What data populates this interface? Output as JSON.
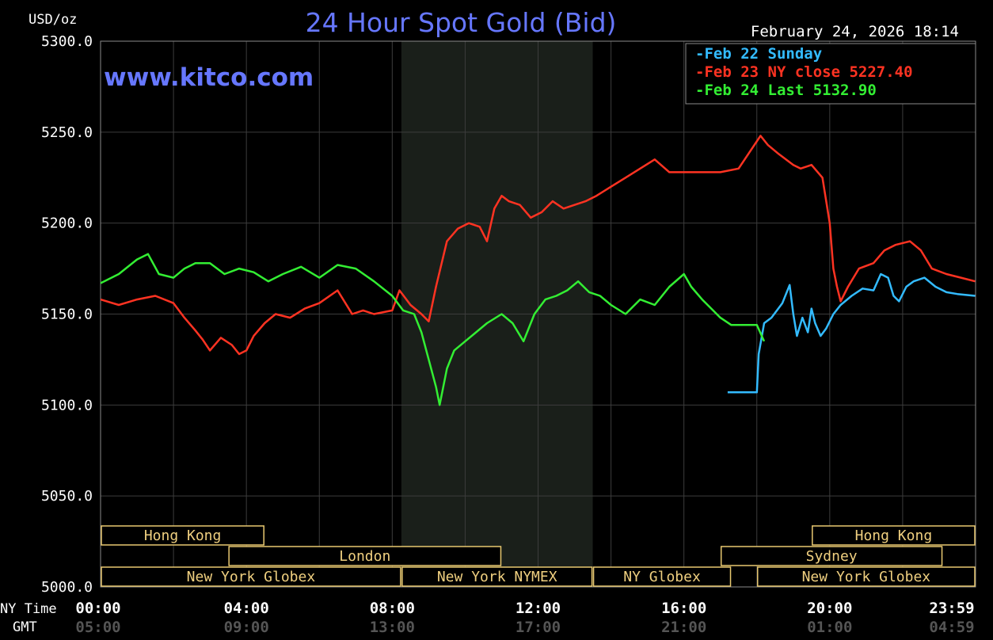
{
  "chart_data": {
    "type": "line",
    "title": "24 Hour Spot Gold (Bid)",
    "ylabel": "USD/oz",
    "watermark": "www.kitco.com",
    "timestamp": "February 24, 2026 18:14",
    "ylim": [
      5000,
      5300
    ],
    "y_ticks": [
      "5300.0",
      "5250.0",
      "5200.0",
      "5150.0",
      "5100.0",
      "5050.0",
      "5000.0"
    ],
    "x_row_labels": {
      "ny": "NY Time",
      "gmt": "GMT"
    },
    "x_ticks_ny": [
      "00:00",
      "04:00",
      "08:00",
      "12:00",
      "16:00",
      "20:00",
      "23:59"
    ],
    "x_ticks_gmt": [
      "05:00",
      "09:00",
      "13:00",
      "17:00",
      "21:00",
      "01:00",
      "04:59"
    ],
    "grid": true,
    "legend_position": "top-right",
    "shaded_region_hours": [
      8.25,
      13.5
    ],
    "sessions": [
      {
        "label": "Hong Kong",
        "start": 0,
        "end": 4.5,
        "row": 0
      },
      {
        "label": "London",
        "start": 3.5,
        "end": 11,
        "row": 1
      },
      {
        "label": "New York Globex",
        "start": 0,
        "end": 8.25,
        "row": 2
      },
      {
        "label": "New York NYMEX",
        "start": 8.25,
        "end": 13.5,
        "row": 2
      },
      {
        "label": "NY Globex",
        "start": 13.5,
        "end": 17.3,
        "row": 2
      },
      {
        "label": "Hong Kong",
        "start": 19.5,
        "end": 24,
        "row": 0
      },
      {
        "label": "Sydney",
        "start": 17,
        "end": 23.1,
        "row": 1
      },
      {
        "label": "New York Globex",
        "start": 18,
        "end": 24,
        "row": 2
      }
    ],
    "series": [
      {
        "name": "Feb 22 Sunday",
        "color": "#33bbff",
        "x": [
          17.2,
          18,
          18.05,
          18.2,
          18.4,
          18.7,
          18.9,
          19.0,
          19.1,
          19.25,
          19.4,
          19.5,
          19.6,
          19.75,
          19.9,
          20.1,
          20.3,
          20.6,
          20.9,
          21.2,
          21.4,
          21.6,
          21.75,
          21.9,
          22.1,
          22.3,
          22.6,
          22.9,
          23.2,
          23.5,
          23.99
        ],
        "y": [
          5107,
          5107,
          5128,
          5145,
          5148,
          5156,
          5166,
          5150,
          5138,
          5148,
          5140,
          5153,
          5145,
          5138,
          5142,
          5150,
          5155,
          5160,
          5164,
          5163,
          5172,
          5170,
          5160,
          5157,
          5165,
          5168,
          5170,
          5165,
          5162,
          5161,
          5160
        ]
      },
      {
        "name": "Feb 23",
        "legend": "Feb 23 NY close 5227.40",
        "color": "#ff3322",
        "x": [
          0,
          0.5,
          1,
          1.5,
          2,
          2.3,
          2.6,
          2.8,
          3.0,
          3.3,
          3.6,
          3.8,
          4.0,
          4.2,
          4.5,
          4.8,
          5.2,
          5.6,
          6.0,
          6.5,
          6.9,
          7.2,
          7.5,
          8.0,
          8.2,
          8.5,
          8.8,
          9.0,
          9.2,
          9.5,
          9.8,
          10.1,
          10.4,
          10.6,
          10.8,
          11.0,
          11.2,
          11.5,
          11.8,
          12.1,
          12.4,
          12.7,
          13.0,
          13.3,
          13.6,
          14.0,
          14.4,
          14.8,
          15.2,
          15.6,
          16.0,
          16.4,
          17.0,
          17.5,
          18.0,
          18.1,
          18.3,
          18.6,
          19.0,
          19.2,
          19.5,
          19.8,
          20.0,
          20.1,
          20.2,
          20.3,
          20.5,
          20.8,
          21.2,
          21.5,
          21.8,
          22.2,
          22.5,
          22.8,
          23.2,
          23.6,
          23.99
        ],
        "y": [
          5158,
          5155,
          5158,
          5160,
          5156,
          5148,
          5141,
          5136,
          5130,
          5137,
          5133,
          5128,
          5130,
          5138,
          5145,
          5150,
          5148,
          5153,
          5156,
          5163,
          5150,
          5152,
          5150,
          5152,
          5163,
          5155,
          5150,
          5146,
          5165,
          5190,
          5197,
          5200,
          5198,
          5190,
          5208,
          5215,
          5212,
          5210,
          5203,
          5206,
          5212,
          5208,
          5210,
          5212,
          5215,
          5220,
          5225,
          5230,
          5235,
          5228,
          5228,
          5228,
          5228,
          5230,
          5245,
          5248,
          5243,
          5238,
          5232,
          5230,
          5232,
          5225,
          5200,
          5175,
          5165,
          5157,
          5165,
          5175,
          5178,
          5185,
          5188,
          5190,
          5185,
          5175,
          5172,
          5170,
          5168
        ]
      },
      {
        "name": "Feb 24",
        "legend": "Feb 24 Last 5132.90",
        "color": "#33ee33",
        "x": [
          0,
          0.5,
          1,
          1.3,
          1.6,
          2.0,
          2.3,
          2.6,
          3.0,
          3.4,
          3.8,
          4.2,
          4.6,
          5.0,
          5.5,
          6.0,
          6.5,
          7.0,
          7.5,
          8.0,
          8.3,
          8.6,
          8.8,
          9.0,
          9.2,
          9.3,
          9.5,
          9.7,
          10.0,
          10.3,
          10.6,
          11.0,
          11.3,
          11.6,
          11.9,
          12.2,
          12.5,
          12.8,
          13.1,
          13.4,
          13.7,
          14.0,
          14.4,
          14.8,
          15.2,
          15.6,
          16.0,
          16.2,
          16.5,
          16.8,
          17.0,
          17.3,
          17.6,
          18.0,
          18.2
        ],
        "y": [
          5167,
          5172,
          5180,
          5183,
          5172,
          5170,
          5175,
          5178,
          5178,
          5172,
          5175,
          5173,
          5168,
          5172,
          5176,
          5170,
          5177,
          5175,
          5168,
          5160,
          5152,
          5150,
          5140,
          5125,
          5110,
          5100,
          5120,
          5130,
          5135,
          5140,
          5145,
          5150,
          5145,
          5135,
          5150,
          5158,
          5160,
          5163,
          5168,
          5162,
          5160,
          5155,
          5150,
          5158,
          5155,
          5165,
          5172,
          5165,
          5158,
          5152,
          5148,
          5144,
          5144,
          5144,
          5135
        ]
      }
    ]
  }
}
